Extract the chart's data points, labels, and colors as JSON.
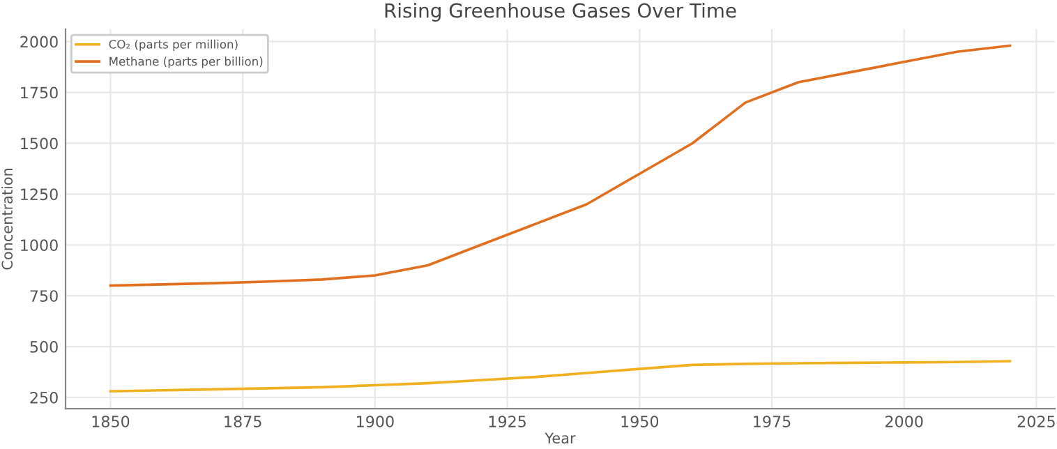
{
  "chart_data": {
    "type": "line",
    "title": "Rising Greenhouse Gases Over Time",
    "xlabel": "Year",
    "ylabel": "Concentration",
    "x": [
      1850,
      1860,
      1870,
      1880,
      1890,
      1900,
      1910,
      1920,
      1930,
      1940,
      1950,
      1960,
      1970,
      1980,
      1990,
      2000,
      2010,
      2020
    ],
    "series": [
      {
        "name": "CO₂ (parts per million)",
        "color": "#f0b020",
        "values": [
          280,
          285,
          290,
          295,
          300,
          310,
          320,
          335,
          350,
          370,
          390,
          410,
          415,
          418,
          420,
          422,
          424,
          428
        ]
      },
      {
        "name": "Methane (parts per billion)",
        "color": "#e0701f",
        "values": [
          800,
          806,
          812,
          820,
          830,
          850,
          900,
          1000,
          1100,
          1200,
          1350,
          1500,
          1700,
          1800,
          1850,
          1900,
          1950,
          1980
        ]
      }
    ],
    "xlim": [
      1841.5,
      2028.5
    ],
    "xticks": [
      1850,
      1875,
      1900,
      1925,
      1950,
      1975,
      2000,
      2025
    ],
    "ylim": [
      195,
      2061
    ],
    "yticks": [
      250,
      500,
      750,
      1000,
      1250,
      1500,
      1750,
      2000
    ],
    "grid": true,
    "legend": "top left"
  }
}
